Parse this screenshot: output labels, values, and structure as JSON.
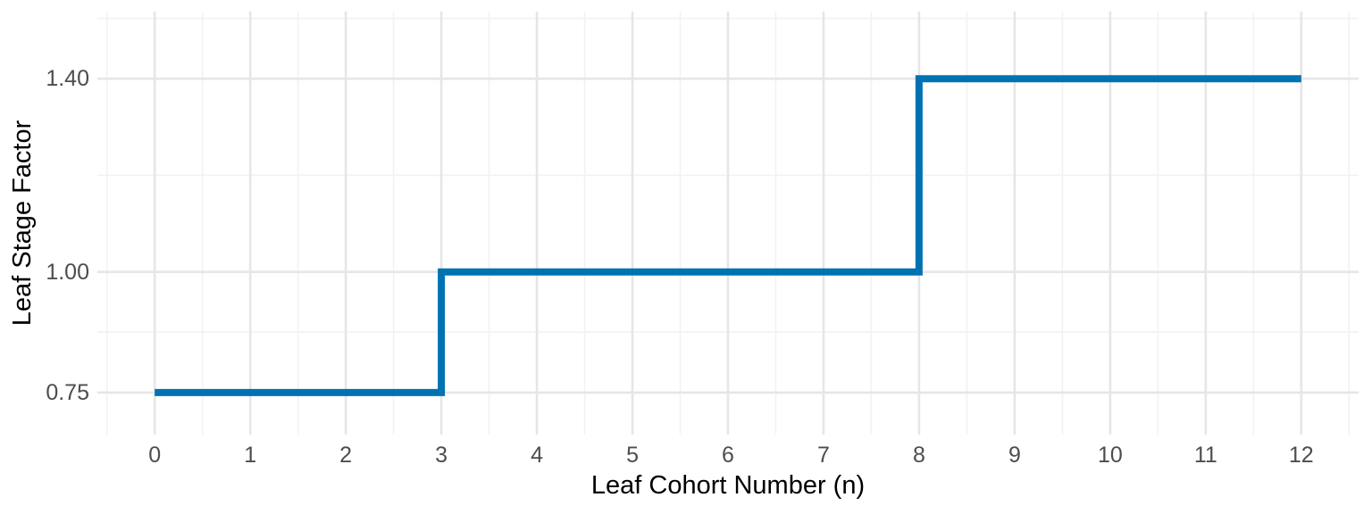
{
  "figure": {
    "background": "#FFFFFF"
  },
  "chart_data": {
    "type": "line",
    "subtype": "step",
    "title": "",
    "xlabel": "Leaf Cohort Number (n)",
    "ylabel": "Leaf Stage Factor",
    "series": [
      {
        "name": "Leaf Stage Factor",
        "x": [
          0,
          3,
          3,
          8,
          8,
          12
        ],
        "y": [
          0.75,
          0.75,
          1.0,
          1.0,
          1.4,
          1.4
        ]
      }
    ],
    "steps": [
      {
        "x_start": 0,
        "x_end": 3,
        "value": 0.75
      },
      {
        "x_start": 3,
        "x_end": 8,
        "value": 1.0
      },
      {
        "x_start": 8,
        "x_end": 12,
        "value": 1.4
      }
    ],
    "x_ticks": [
      0,
      1,
      2,
      3,
      4,
      5,
      6,
      7,
      8,
      9,
      10,
      11,
      12
    ],
    "x_tick_labels": [
      "0",
      "1",
      "2",
      "3",
      "4",
      "5",
      "6",
      "7",
      "8",
      "9",
      "10",
      "11",
      "12"
    ],
    "y_ticks": [
      0.75,
      1.0,
      1.4
    ],
    "y_tick_labels": [
      "0.75",
      "1.00",
      "1.40"
    ],
    "x_minor_gridlines": [
      -0.5,
      0.5,
      1.5,
      2.5,
      3.5,
      4.5,
      5.5,
      6.5,
      7.5,
      8.5,
      9.5,
      10.5,
      11.5,
      12.5
    ],
    "y_minor_gridlines": [
      0.875,
      1.2,
      1.525
    ],
    "xlim": [
      -0.6,
      12.6
    ],
    "ylim": [
      0.663,
      1.539
    ],
    "grid": true,
    "legend": "none",
    "line_color": "#0072B2",
    "line_width": 8,
    "colors": {
      "major_grid": "#E6E6E6",
      "minor_grid": "#F2F2F2",
      "tick_label": "#4D4D4D",
      "axis_title": "#000000",
      "panel_background": "#FFFFFF"
    }
  }
}
